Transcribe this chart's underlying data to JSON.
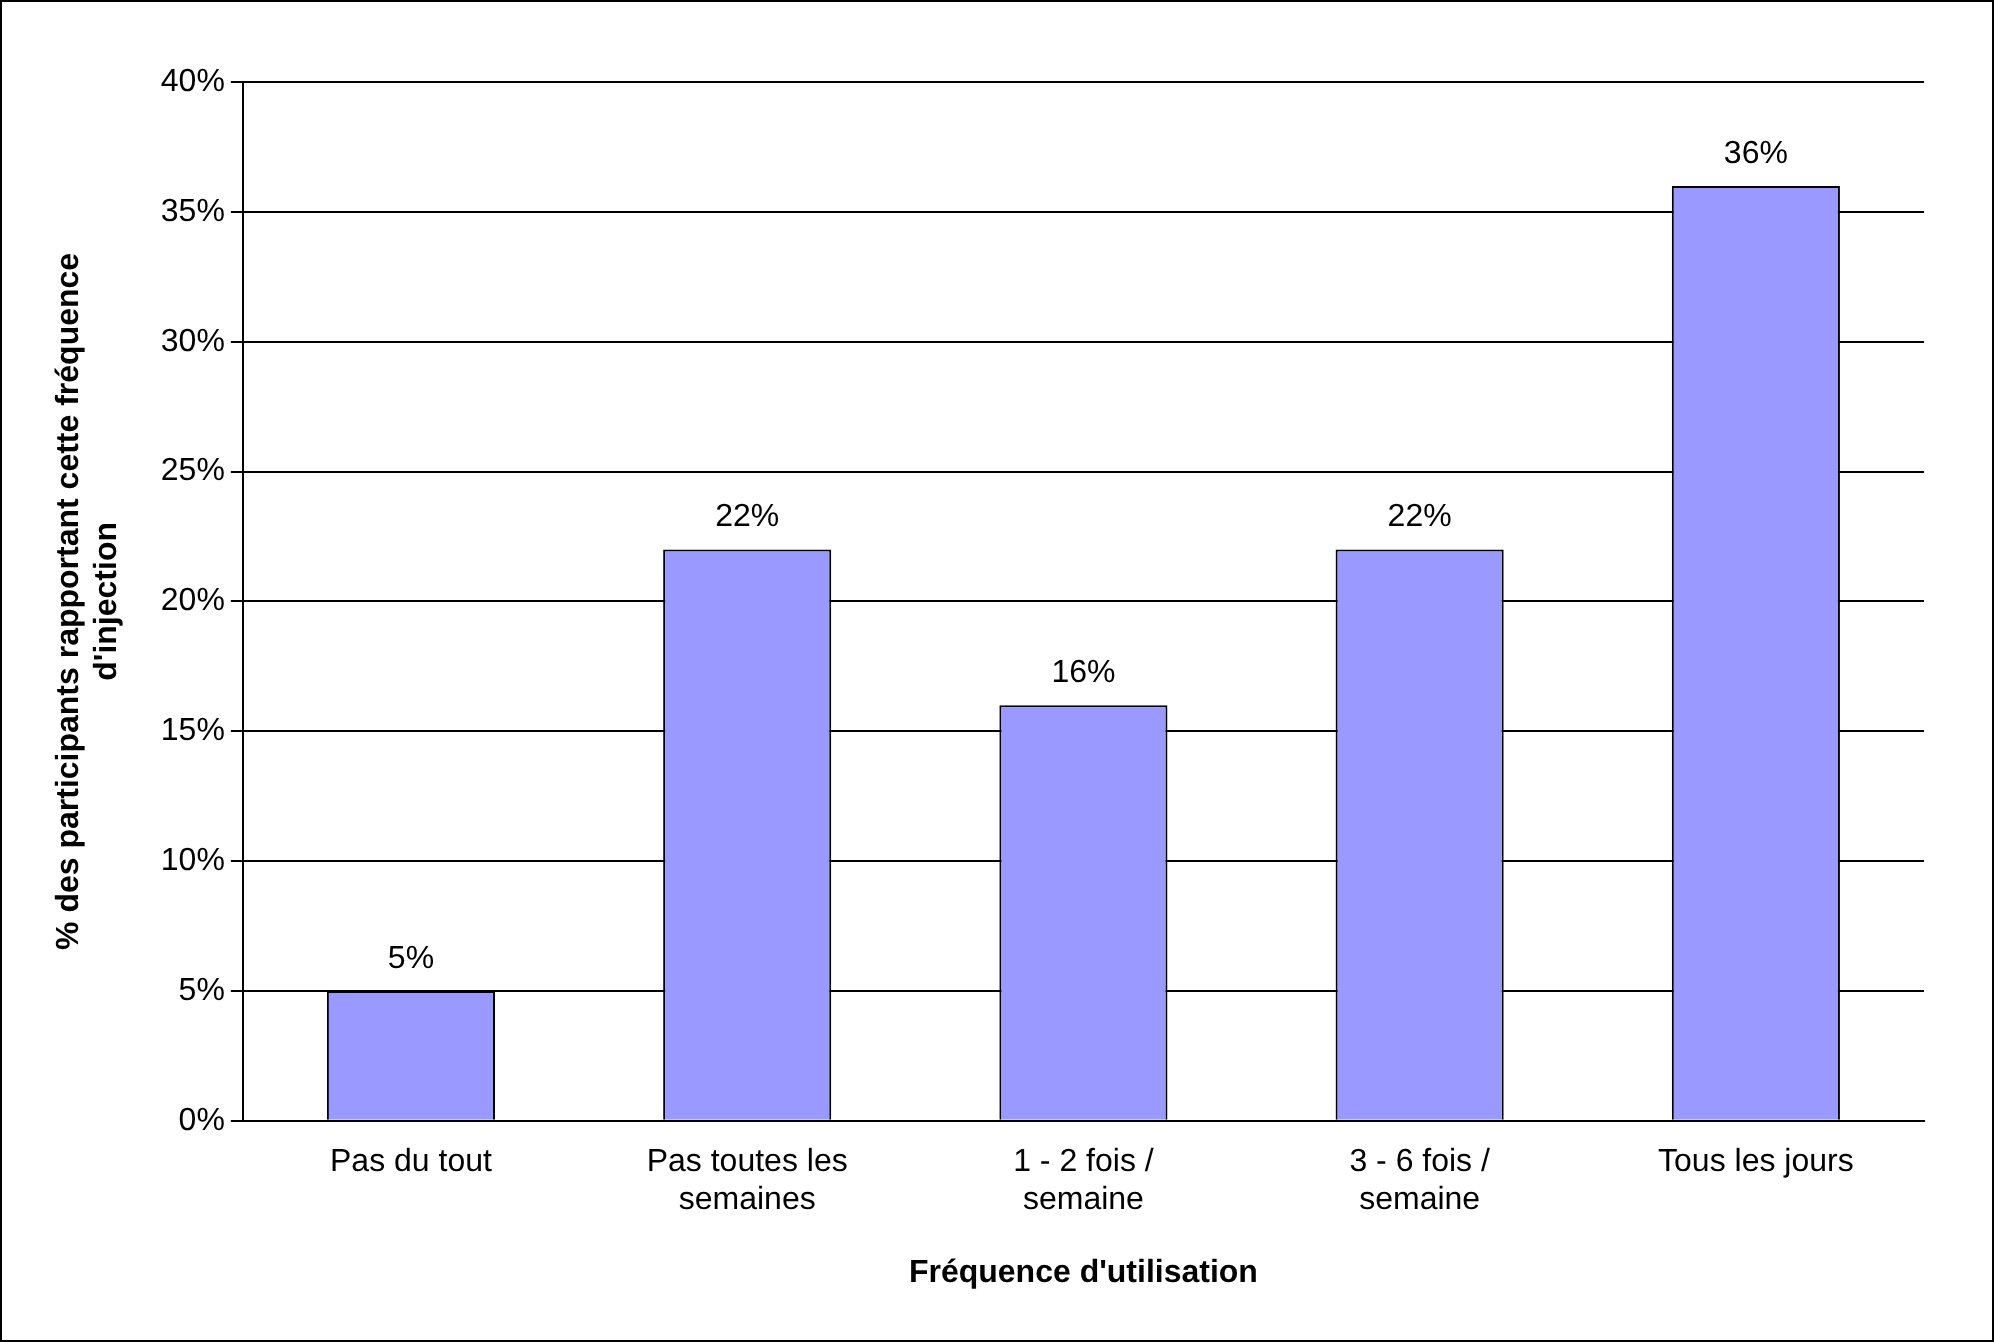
{
  "chart_data": {
    "type": "bar",
    "xlabel": "Fréquence d'utilisation",
    "ylabel": "% des participants rapportant cette fréquence d'injection",
    "categories": [
      "Pas du tout",
      "Pas toutes les semaines",
      "1 - 2 fois / semaine",
      "3 - 6 fois / semaine",
      "Tous les jours"
    ],
    "values": [
      5,
      22,
      16,
      22,
      36
    ],
    "value_labels": [
      "5%",
      "22%",
      "16%",
      "22%",
      "36%"
    ],
    "color": "#9999ff",
    "ylim": [
      0,
      40
    ],
    "yticks": [
      {
        "value": 0,
        "label": "0%"
      },
      {
        "value": 5,
        "label": "5%"
      },
      {
        "value": 10,
        "label": "10%"
      },
      {
        "value": 15,
        "label": "15%"
      },
      {
        "value": 20,
        "label": "20%"
      },
      {
        "value": 25,
        "label": "25%"
      },
      {
        "value": 30,
        "label": "30%"
      },
      {
        "value": 35,
        "label": "35%"
      },
      {
        "value": 40,
        "label": "40%"
      }
    ],
    "grid": "y",
    "legend": false
  }
}
